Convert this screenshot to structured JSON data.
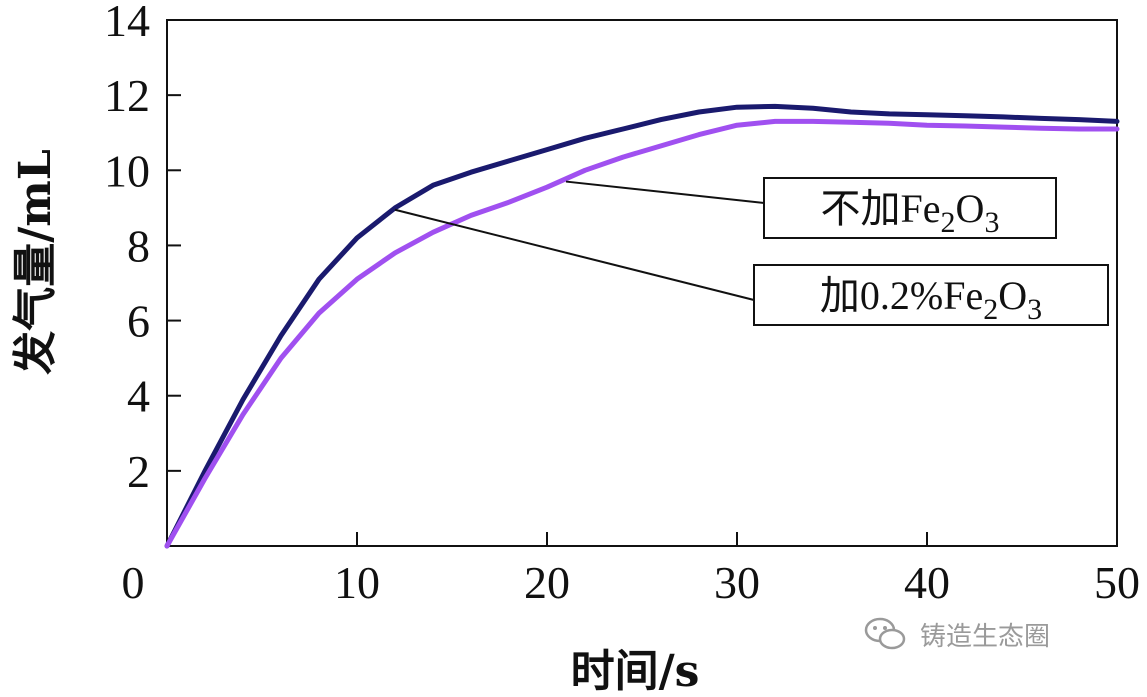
{
  "chart_data": {
    "type": "line",
    "xlabel": "时间/s",
    "ylabel": "发气量/mL",
    "xlim": [
      0,
      50
    ],
    "ylim": [
      0,
      14
    ],
    "xticks": [
      0,
      10,
      20,
      30,
      40,
      50
    ],
    "yticks": [
      2,
      4,
      6,
      8,
      10,
      12,
      14
    ],
    "grid": false,
    "series": [
      {
        "name": "不加Fe2O3",
        "color": "#1a1a6e",
        "x": [
          0,
          2,
          4,
          6,
          8,
          10,
          12,
          14,
          16,
          18,
          20,
          22,
          24,
          26,
          28,
          30,
          32,
          34,
          36,
          38,
          40,
          42,
          44,
          46,
          48,
          50
        ],
        "y": [
          0,
          2.0,
          3.9,
          5.6,
          7.1,
          8.2,
          9.0,
          9.6,
          9.95,
          10.25,
          10.55,
          10.85,
          11.1,
          11.35,
          11.55,
          11.68,
          11.7,
          11.65,
          11.55,
          11.5,
          11.48,
          11.45,
          11.42,
          11.38,
          11.35,
          11.3
        ]
      },
      {
        "name": "加0.2%Fe2O3",
        "color": "#a050f0",
        "x": [
          0,
          2,
          4,
          6,
          8,
          10,
          12,
          14,
          16,
          18,
          20,
          22,
          24,
          26,
          28,
          30,
          32,
          34,
          36,
          38,
          40,
          42,
          44,
          46,
          48,
          50
        ],
        "y": [
          0,
          1.8,
          3.5,
          5.0,
          6.2,
          7.1,
          7.8,
          8.35,
          8.8,
          9.15,
          9.55,
          10.0,
          10.35,
          10.65,
          10.95,
          11.2,
          11.3,
          11.3,
          11.28,
          11.25,
          11.2,
          11.18,
          11.15,
          11.12,
          11.1,
          11.1
        ]
      }
    ],
    "annotations": [
      {
        "series": 0,
        "label_main": "不加Fe",
        "label_sub1": "2",
        "label_mid": "O",
        "label_sub2": "3",
        "anchor_x": 21,
        "anchor_y": 9.7
      },
      {
        "series": 1,
        "label_main": "加0.2%Fe",
        "label_sub1": "2",
        "label_mid": "O",
        "label_sub2": "3",
        "anchor_x": 12,
        "anchor_y": 8.95
      }
    ]
  },
  "watermark": "铸造生态圈"
}
